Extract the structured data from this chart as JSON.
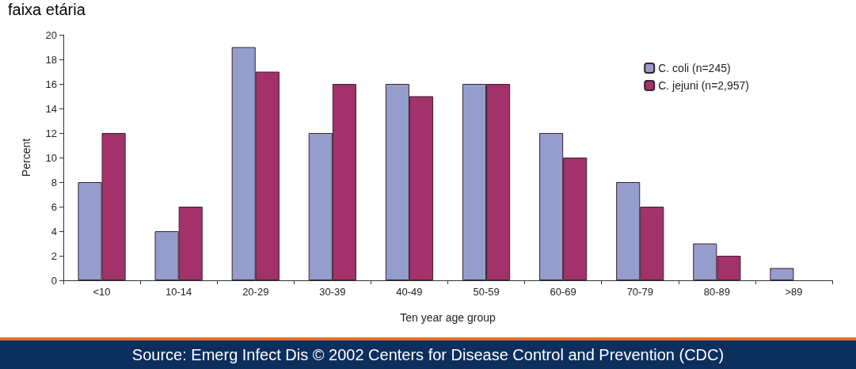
{
  "chart_data": {
    "type": "bar",
    "title": "faixa etária",
    "xlabel": "Ten year age group",
    "ylabel": "Percent",
    "categories": [
      "<10",
      "10-14",
      "20-29",
      "30-39",
      "40-49",
      "50-59",
      "60-69",
      "70-79",
      "80-89",
      ">89"
    ],
    "series": [
      {
        "name": "C. coli (n=245)",
        "color": "#959dcc",
        "values": [
          8,
          4,
          19,
          12,
          16,
          16,
          12,
          8,
          3,
          1
        ]
      },
      {
        "name": "C. jejuni (n=2,957)",
        "color": "#a3326a",
        "values": [
          12,
          6,
          17,
          16,
          15,
          16,
          10,
          6,
          2,
          null
        ]
      }
    ],
    "ylim": [
      0,
      20
    ],
    "yticks": [
      0,
      2,
      4,
      6,
      8,
      10,
      12,
      14,
      16,
      18,
      20
    ],
    "grid": false,
    "legend": "top right",
    "annotations": [
      "Source: Emerg Infect Dis © 2002 Centers for Disease Control and Prevention (CDC)"
    ]
  }
}
